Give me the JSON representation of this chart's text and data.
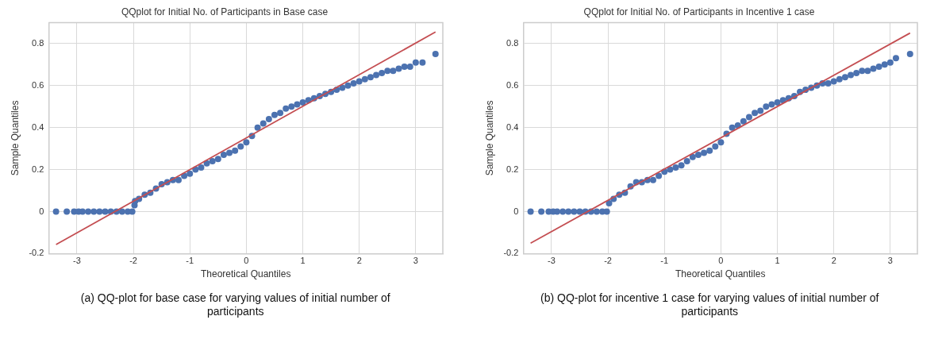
{
  "chart_data": [
    {
      "type": "scatter",
      "title": "QQplot for Initial No. of Participants in Base case",
      "xlabel": "Theoretical Quantiles",
      "ylabel": "Sample Quantiles",
      "annotations": [
        "(a) QQ-plot for base case for varying values of initial number of participants"
      ],
      "xlim": [
        -3.5,
        3.48
      ],
      "ylim": [
        -0.2,
        0.9
      ],
      "xticks": [
        -3,
        -2,
        -1,
        0,
        1,
        2,
        3
      ],
      "yticks": [
        -0.2,
        0.0,
        0.2,
        0.4,
        0.6,
        0.8
      ],
      "grid": true,
      "marker": "circle",
      "series": [
        {
          "color": "#4c72b0",
          "x": [
            -3.37,
            -3.18,
            -3.05,
            -2.97,
            -2.9,
            -2.8,
            -2.7,
            -2.6,
            -2.5,
            -2.4,
            -2.3,
            -2.2,
            -2.1,
            -2.02,
            -1.98,
            -1.97,
            -1.9,
            -1.8,
            -1.7,
            -1.6,
            -1.5,
            -1.4,
            -1.3,
            -1.2,
            -1.1,
            -1.0,
            -0.9,
            -0.8,
            -0.7,
            -0.6,
            -0.5,
            -0.4,
            -0.3,
            -0.2,
            -0.1,
            0,
            0.1,
            0.2,
            0.3,
            0.4,
            0.5,
            0.6,
            0.7,
            0.8,
            0.9,
            1.0,
            1.1,
            1.2,
            1.3,
            1.4,
            1.5,
            1.6,
            1.7,
            1.8,
            1.9,
            2.0,
            2.1,
            2.2,
            2.3,
            2.4,
            2.5,
            2.6,
            2.7,
            2.8,
            2.9,
            3.0,
            3.12,
            3.35
          ],
          "values": [
            0,
            0,
            0,
            0,
            0,
            0,
            0,
            0,
            0,
            0,
            0,
            0,
            0,
            0,
            0.03,
            0.05,
            0.06,
            0.08,
            0.09,
            0.11,
            0.13,
            0.14,
            0.15,
            0.15,
            0.17,
            0.18,
            0.2,
            0.21,
            0.23,
            0.24,
            0.25,
            0.27,
            0.28,
            0.29,
            0.31,
            0.33,
            0.36,
            0.4,
            0.42,
            0.44,
            0.46,
            0.47,
            0.49,
            0.5,
            0.51,
            0.52,
            0.53,
            0.54,
            0.55,
            0.56,
            0.57,
            0.58,
            0.59,
            0.6,
            0.61,
            0.62,
            0.63,
            0.64,
            0.65,
            0.66,
            0.67,
            0.67,
            0.68,
            0.69,
            0.69,
            0.71,
            0.71,
            0.75
          ]
        },
        {
          "type": "line",
          "color": "#c44e52",
          "marker": "none",
          "x": [
            -3.37,
            3.35
          ],
          "values": [
            -0.157,
            0.855
          ]
        }
      ]
    },
    {
      "type": "scatter",
      "title": "QQplot for Initial No. of Participants in Incentive 1 case",
      "xlabel": "Theoretical Quantiles",
      "ylabel": "Sample Quantiles",
      "annotations": [
        "(b) QQ-plot for incentive 1 case for varying values of initial number of participants"
      ],
      "xlim": [
        -3.5,
        3.48
      ],
      "ylim": [
        -0.2,
        0.9
      ],
      "xticks": [
        -3,
        -2,
        -1,
        0,
        1,
        2,
        3
      ],
      "yticks": [
        -0.2,
        0.0,
        0.2,
        0.4,
        0.6,
        0.8
      ],
      "grid": true,
      "marker": "circle",
      "series": [
        {
          "color": "#4c72b0",
          "x": [
            -3.37,
            -3.18,
            -3.05,
            -2.97,
            -2.9,
            -2.8,
            -2.7,
            -2.6,
            -2.5,
            -2.4,
            -2.3,
            -2.2,
            -2.1,
            -2.02,
            -1.98,
            -1.9,
            -1.8,
            -1.7,
            -1.6,
            -1.5,
            -1.4,
            -1.3,
            -1.2,
            -1.1,
            -1.0,
            -0.9,
            -0.8,
            -0.7,
            -0.6,
            -0.5,
            -0.4,
            -0.3,
            -0.2,
            -0.1,
            0,
            0.1,
            0.2,
            0.3,
            0.4,
            0.5,
            0.6,
            0.7,
            0.8,
            0.9,
            1.0,
            1.1,
            1.2,
            1.3,
            1.4,
            1.5,
            1.6,
            1.7,
            1.8,
            1.9,
            2.0,
            2.1,
            2.2,
            2.3,
            2.4,
            2.5,
            2.6,
            2.7,
            2.8,
            2.9,
            3.0,
            3.1,
            3.35
          ],
          "values": [
            0,
            0,
            0,
            0,
            0,
            0,
            0,
            0,
            0,
            0,
            0,
            0,
            0,
            0,
            0.04,
            0.06,
            0.08,
            0.09,
            0.12,
            0.14,
            0.14,
            0.15,
            0.15,
            0.17,
            0.19,
            0.2,
            0.21,
            0.22,
            0.24,
            0.26,
            0.27,
            0.28,
            0.29,
            0.31,
            0.33,
            0.37,
            0.4,
            0.41,
            0.43,
            0.45,
            0.47,
            0.48,
            0.5,
            0.51,
            0.52,
            0.53,
            0.54,
            0.55,
            0.57,
            0.58,
            0.59,
            0.6,
            0.61,
            0.61,
            0.62,
            0.63,
            0.64,
            0.65,
            0.66,
            0.67,
            0.67,
            0.68,
            0.69,
            0.7,
            0.71,
            0.73,
            0.75
          ]
        },
        {
          "type": "line",
          "color": "#c44e52",
          "marker": "none",
          "x": [
            -3.37,
            3.35
          ],
          "values": [
            -0.15,
            0.85
          ]
        }
      ]
    }
  ]
}
